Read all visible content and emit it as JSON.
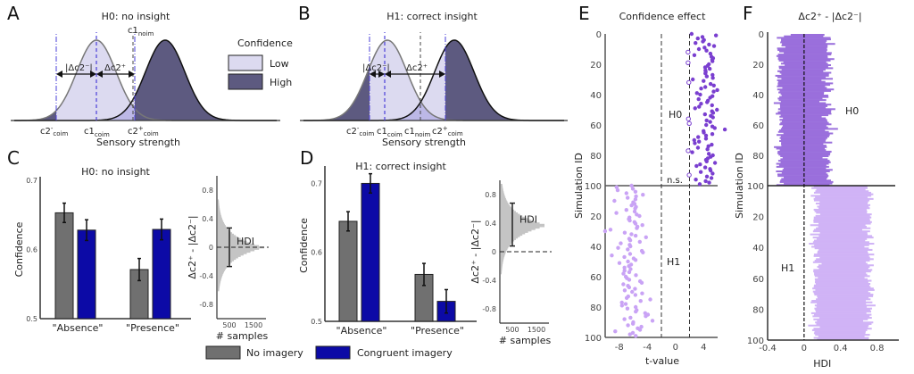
{
  "panels": {
    "A": {
      "letter": "A",
      "title": "H0: no insight",
      "xlabel": "Sensory strength",
      "labels": {
        "c1noim_base": "c1",
        "c1noim_sub": "noim",
        "c2m_base": "c2",
        "c2m_sup": "-",
        "c2m_sub": "coim",
        "c1coim_base": "c1",
        "c1coim_sub": "coim",
        "c2p_base": "c2",
        "c2p_sup": "+",
        "c2p_sub": "coim",
        "dminus": "|Δc2⁻|",
        "dplus": "Δc2⁺"
      }
    },
    "B": {
      "letter": "B",
      "title": "H1: correct insight",
      "xlabel": "Sensory strength",
      "labels": {
        "c2m_base": "c2",
        "c2m_sup": "-",
        "c2m_sub": "coim",
        "c1coim_base": "c1",
        "c1coim_sub": "coim",
        "c1noim_base": "c1",
        "c1noim_sub": "noim",
        "c2p_base": "c2",
        "c2p_sup": "+",
        "c2p_sub": "coim",
        "dminus": "|Δc2⁻|",
        "dplus": "Δc2⁺"
      }
    },
    "C": {
      "letter": "C"
    },
    "D": {
      "letter": "D"
    },
    "E": {
      "letter": "E"
    },
    "F": {
      "letter": "F"
    }
  },
  "legend_confidence": {
    "title": "Confidence",
    "items": [
      {
        "label": "Low",
        "color": "#dcdaf0"
      },
      {
        "label": "High",
        "color": "#5d5a80"
      }
    ]
  },
  "legend_imagery": {
    "items": [
      {
        "label": "No imagery",
        "color": "#707070"
      },
      {
        "label": "Congruent imagery",
        "color": "#0c0aa6"
      }
    ]
  },
  "chart_data": [
    {
      "id": "C",
      "type": "bar",
      "title": "H0: no insight",
      "categories": [
        "\"Absence\"",
        "\"Presence\""
      ],
      "ylabel": "Confidence",
      "ylim": [
        0.5,
        0.7
      ],
      "yticks": [
        "0.5",
        "0.6",
        "0.7"
      ],
      "series": [
        {
          "name": "No imagery",
          "values": [
            0.653,
            0.571
          ],
          "err": [
            0.014,
            0.016
          ]
        },
        {
          "name": "Congruent imagery",
          "values": [
            0.628,
            0.629
          ],
          "err": [
            0.015,
            0.015
          ]
        }
      ]
    },
    {
      "id": "C-inset",
      "type": "histogram",
      "annotation": "HDI",
      "xlabel": "# samples",
      "ylabel": "Δc2⁺ - |Δc2⁻|",
      "xticks": [
        "500",
        "1500"
      ],
      "yticks": [
        "0.8",
        "0.4",
        "0",
        "-0.4",
        "-0.8"
      ],
      "ylim": [
        -1.0,
        1.0
      ],
      "mode": 0.0,
      "hdi": [
        -0.27,
        0.27
      ],
      "spread": 0.17
    },
    {
      "id": "D",
      "type": "bar",
      "title": "H1: correct insight",
      "categories": [
        "\"Absence\"",
        "\"Presence\""
      ],
      "ylabel": "Confidence",
      "ylim": [
        0.5,
        0.72
      ],
      "yticks": [
        "0.5",
        "0.6",
        "0.7"
      ],
      "series": [
        {
          "name": "No imagery",
          "values": [
            0.645,
            0.568
          ],
          "err": [
            0.014,
            0.016
          ]
        },
        {
          "name": "Congruent imagery",
          "values": [
            0.7,
            0.529
          ],
          "err": [
            0.014,
            0.017
          ]
        }
      ]
    },
    {
      "id": "D-inset",
      "type": "histogram",
      "annotation": "HDI",
      "xlabel": "# samples",
      "ylabel": "Δc2⁺ - |Δc2⁻|",
      "xticks": [
        "500",
        "1500"
      ],
      "yticks": [
        "0.8",
        "0.4",
        "0",
        "-0.4",
        "-0.8"
      ],
      "ylim": [
        -1.0,
        1.0
      ],
      "mode": 0.37,
      "hdi": [
        0.08,
        0.68
      ],
      "spread": 0.17
    },
    {
      "id": "E",
      "type": "scatter",
      "title": "Confidence effect",
      "xlabel": "t-value",
      "ylabel": "Simulation ID",
      "xlim": [
        -10,
        6
      ],
      "xticks": [
        "-8",
        "-4",
        "0",
        "4"
      ],
      "yticks": [
        "0",
        "20",
        "40",
        "60",
        "80",
        "100"
      ],
      "thresholds": [
        -2,
        2
      ],
      "groups": [
        {
          "name": "H0",
          "label": "H0",
          "annotation": "n.s.",
          "color": "#7a3fd0",
          "mean_t": 4.3,
          "sd_t": 1.0,
          "n": 100,
          "ns_ids": [
            12,
            19,
            32,
            56,
            59,
            77,
            93
          ]
        },
        {
          "name": "H1",
          "label": "H1",
          "color": "#c9a3f5",
          "mean_t": -6.2,
          "sd_t": 1.0,
          "n": 100
        }
      ]
    },
    {
      "id": "F",
      "type": "bar",
      "orientation": "horizontal",
      "title": "Δc2⁺ - |Δc2⁻|",
      "xlabel": "HDI",
      "ylabel": "Simulation ID",
      "xlim": [
        -0.4,
        1.0
      ],
      "xticks": [
        "-0.4",
        "0",
        "0.4",
        "0.8"
      ],
      "yticks": [
        "0",
        "20",
        "40",
        "60",
        "80",
        "100"
      ],
      "groups": [
        {
          "name": "H0",
          "label": "H0",
          "color": "#9a6fdc",
          "hdi_low_mean": -0.27,
          "hdi_high_mean": 0.27,
          "n": 100
        },
        {
          "name": "H1",
          "label": "H1",
          "color": "#d0b3f6",
          "hdi_low_mean": 0.12,
          "hdi_high_mean": 0.72,
          "n": 100
        }
      ]
    }
  ]
}
